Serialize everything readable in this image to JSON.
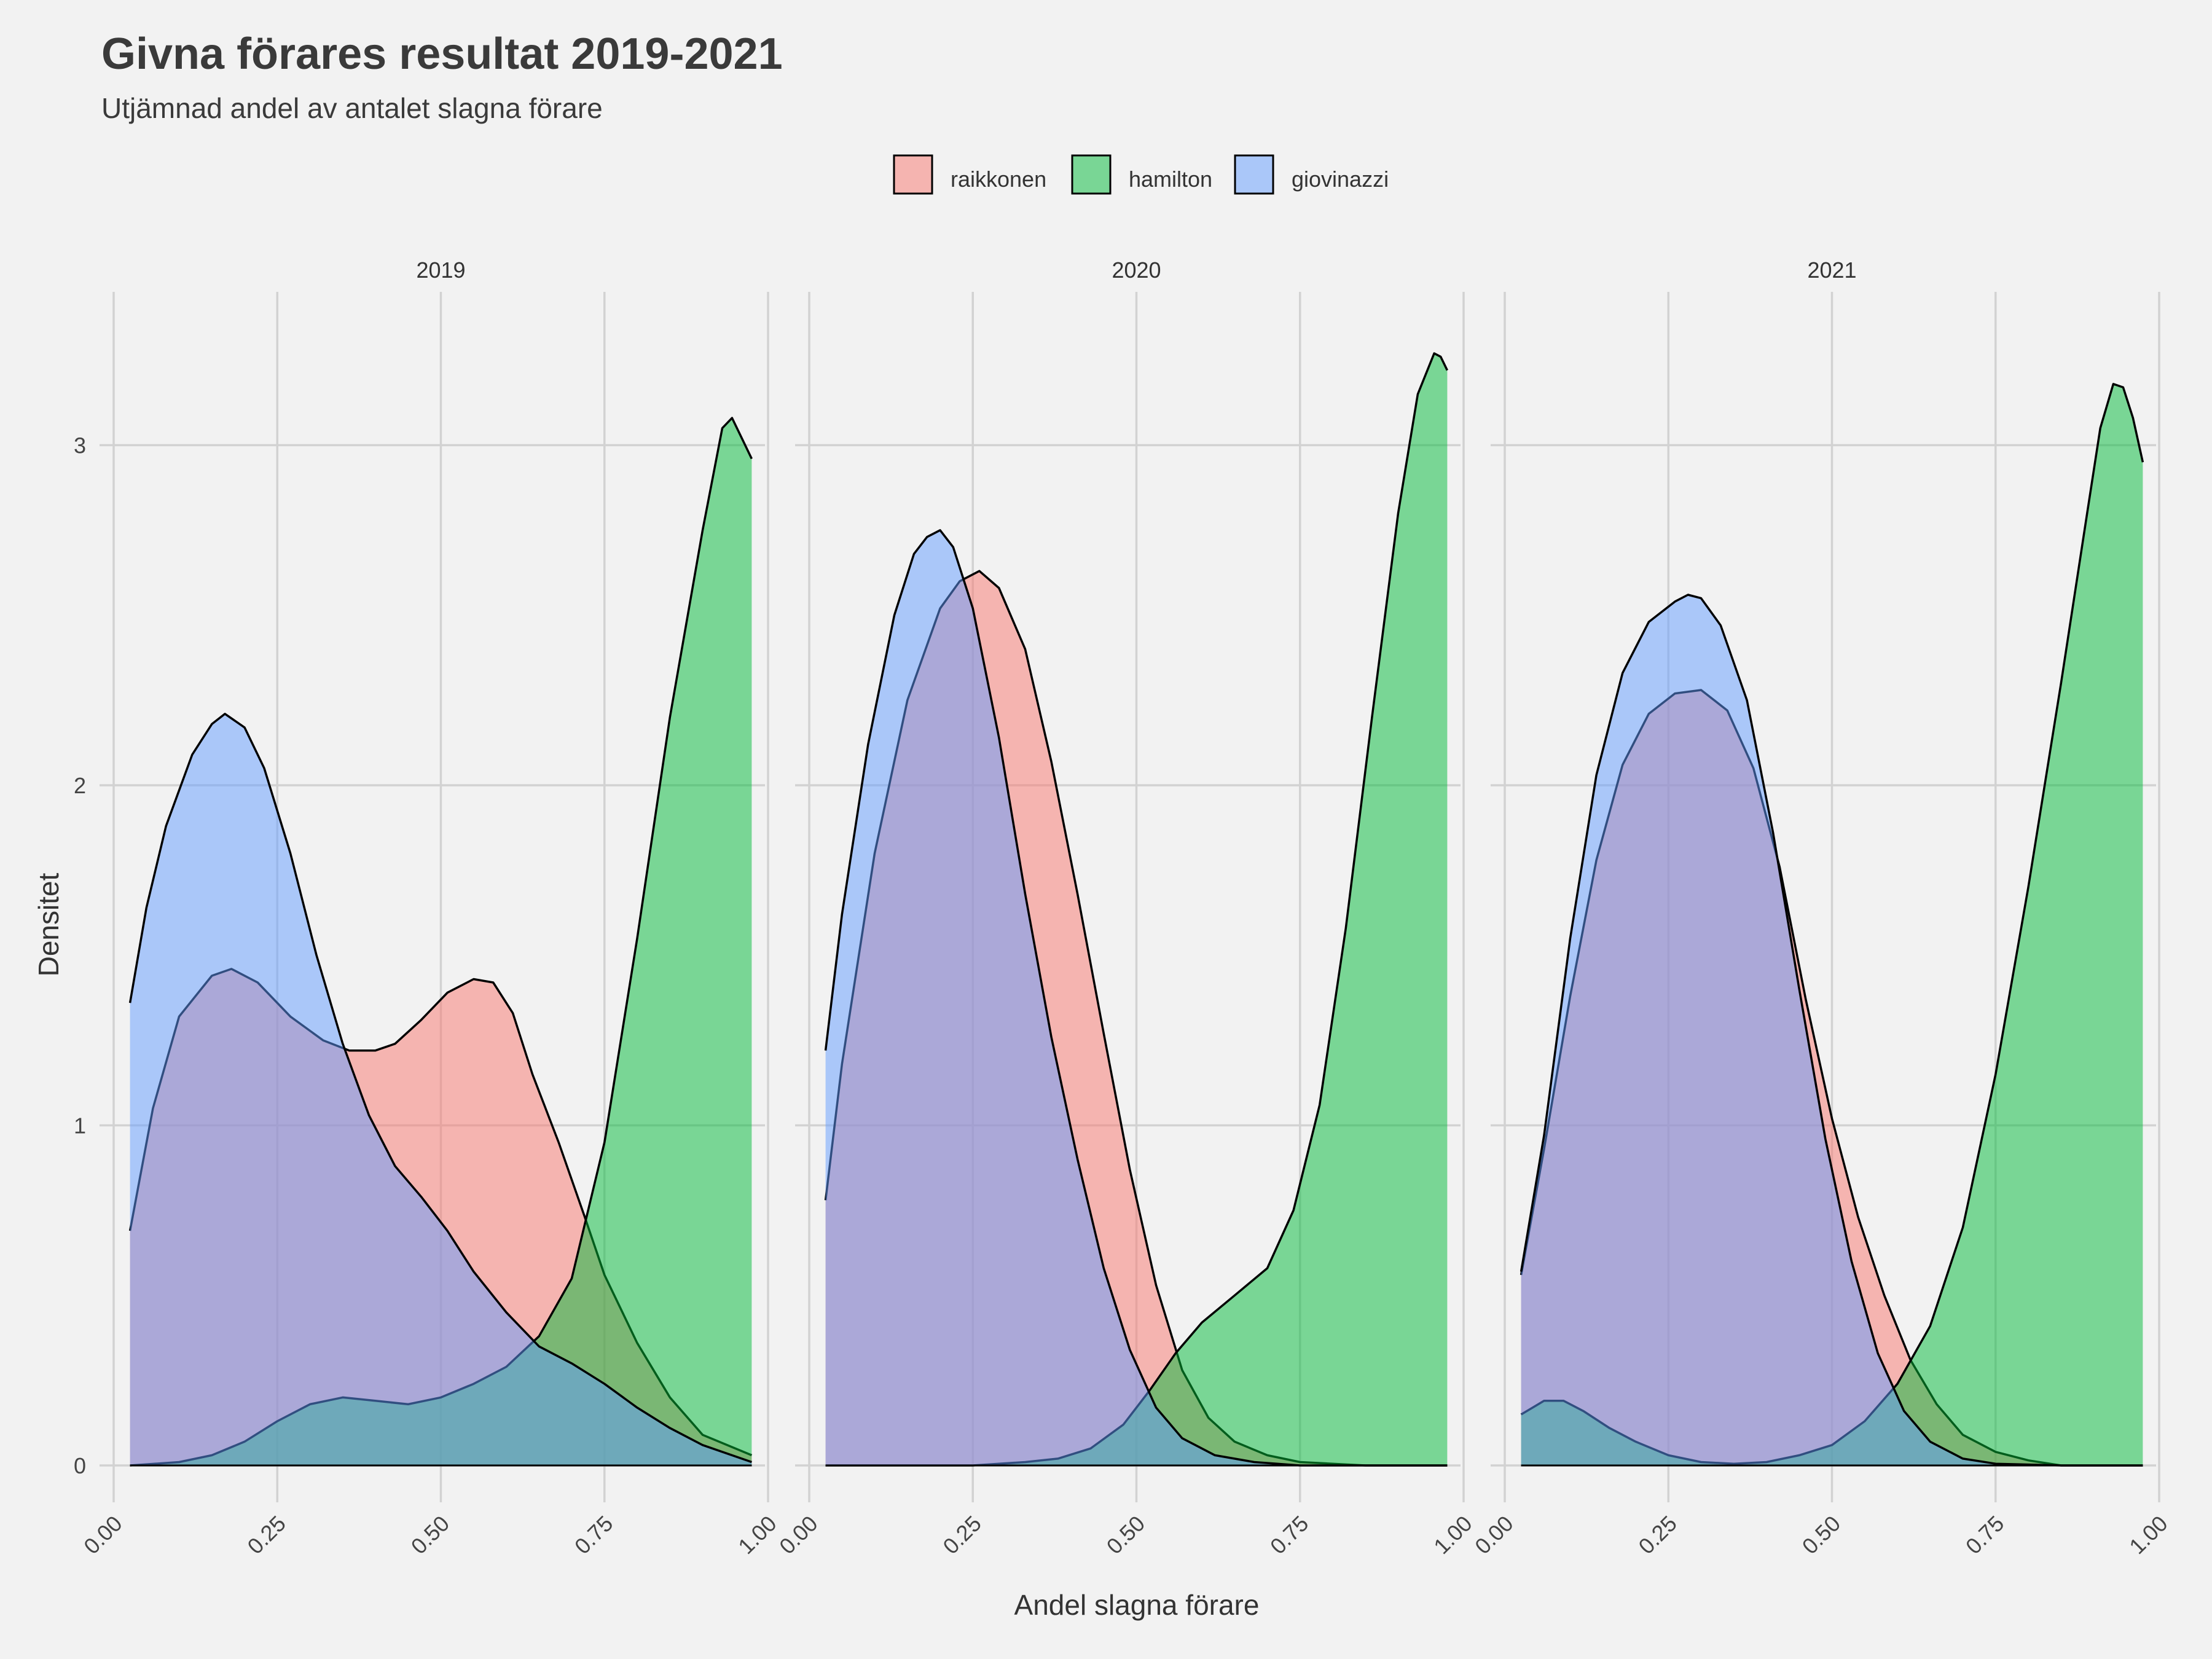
{
  "title": "Givna förares resultat 2019-2021",
  "subtitle": "Utjämnad andel av antalet slagna förare",
  "colors": {
    "raikkonen": "#f8766d",
    "hamilton": "#00ba38",
    "giovinazzi": "#619cff",
    "background": "#f2f2f2",
    "grid": "#d2d2d2"
  },
  "chart_data": {
    "type": "area",
    "subtype": "density",
    "xlabel": "Andel slagna förare",
    "ylabel": "Densitet",
    "xlim": [
      0,
      1
    ],
    "ylim": [
      0,
      3.3
    ],
    "xticks": [
      "0.00",
      "0.25",
      "0.50",
      "0.75",
      "1.00"
    ],
    "yticks": [
      "0",
      "1",
      "2",
      "3"
    ],
    "legend": {
      "position": "top",
      "entries": [
        "raikkonen",
        "hamilton",
        "giovinazzi"
      ]
    },
    "grid": true,
    "panels": [
      {
        "label": "2019",
        "series": [
          {
            "name": "raikkonen",
            "points": [
              [
                0.025,
                0.69
              ],
              [
                0.06,
                1.05
              ],
              [
                0.1,
                1.32
              ],
              [
                0.15,
                1.44
              ],
              [
                0.18,
                1.46
              ],
              [
                0.22,
                1.42
              ],
              [
                0.27,
                1.32
              ],
              [
                0.32,
                1.25
              ],
              [
                0.36,
                1.22
              ],
              [
                0.4,
                1.22
              ],
              [
                0.43,
                1.24
              ],
              [
                0.47,
                1.31
              ],
              [
                0.51,
                1.39
              ],
              [
                0.55,
                1.43
              ],
              [
                0.58,
                1.42
              ],
              [
                0.61,
                1.33
              ],
              [
                0.64,
                1.15
              ],
              [
                0.68,
                0.95
              ],
              [
                0.72,
                0.73
              ],
              [
                0.75,
                0.56
              ],
              [
                0.8,
                0.36
              ],
              [
                0.85,
                0.2
              ],
              [
                0.9,
                0.09
              ],
              [
                0.975,
                0.03
              ]
            ]
          },
          {
            "name": "hamilton",
            "points": [
              [
                0.025,
                0.0
              ],
              [
                0.1,
                0.01
              ],
              [
                0.15,
                0.03
              ],
              [
                0.2,
                0.07
              ],
              [
                0.25,
                0.13
              ],
              [
                0.3,
                0.18
              ],
              [
                0.35,
                0.2
              ],
              [
                0.4,
                0.19
              ],
              [
                0.45,
                0.18
              ],
              [
                0.5,
                0.2
              ],
              [
                0.55,
                0.24
              ],
              [
                0.6,
                0.29
              ],
              [
                0.65,
                0.38
              ],
              [
                0.7,
                0.55
              ],
              [
                0.75,
                0.95
              ],
              [
                0.8,
                1.55
              ],
              [
                0.85,
                2.2
              ],
              [
                0.9,
                2.75
              ],
              [
                0.93,
                3.05
              ],
              [
                0.945,
                3.08
              ],
              [
                0.96,
                3.02
              ],
              [
                0.975,
                2.96
              ]
            ]
          },
          {
            "name": "giovinazzi",
            "points": [
              [
                0.025,
                1.36
              ],
              [
                0.05,
                1.64
              ],
              [
                0.08,
                1.88
              ],
              [
                0.12,
                2.09
              ],
              [
                0.15,
                2.18
              ],
              [
                0.17,
                2.21
              ],
              [
                0.2,
                2.17
              ],
              [
                0.23,
                2.05
              ],
              [
                0.27,
                1.8
              ],
              [
                0.31,
                1.5
              ],
              [
                0.35,
                1.24
              ],
              [
                0.39,
                1.03
              ],
              [
                0.43,
                0.88
              ],
              [
                0.47,
                0.79
              ],
              [
                0.51,
                0.69
              ],
              [
                0.55,
                0.57
              ],
              [
                0.6,
                0.45
              ],
              [
                0.65,
                0.35
              ],
              [
                0.7,
                0.3
              ],
              [
                0.75,
                0.24
              ],
              [
                0.8,
                0.17
              ],
              [
                0.85,
                0.11
              ],
              [
                0.9,
                0.06
              ],
              [
                0.975,
                0.01
              ]
            ]
          }
        ]
      },
      {
        "label": "2020",
        "series": [
          {
            "name": "raikkonen",
            "points": [
              [
                0.025,
                0.78
              ],
              [
                0.05,
                1.18
              ],
              [
                0.1,
                1.8
              ],
              [
                0.15,
                2.25
              ],
              [
                0.2,
                2.52
              ],
              [
                0.23,
                2.6
              ],
              [
                0.26,
                2.63
              ],
              [
                0.29,
                2.58
              ],
              [
                0.33,
                2.4
              ],
              [
                0.37,
                2.07
              ],
              [
                0.41,
                1.68
              ],
              [
                0.45,
                1.27
              ],
              [
                0.49,
                0.87
              ],
              [
                0.53,
                0.53
              ],
              [
                0.57,
                0.28
              ],
              [
                0.61,
                0.14
              ],
              [
                0.65,
                0.07
              ],
              [
                0.7,
                0.03
              ],
              [
                0.75,
                0.01
              ],
              [
                0.85,
                0.0
              ],
              [
                0.975,
                0.0
              ]
            ]
          },
          {
            "name": "hamilton",
            "points": [
              [
                0.025,
                0.0
              ],
              [
                0.25,
                0.0
              ],
              [
                0.33,
                0.01
              ],
              [
                0.38,
                0.02
              ],
              [
                0.43,
                0.05
              ],
              [
                0.48,
                0.12
              ],
              [
                0.52,
                0.22
              ],
              [
                0.56,
                0.33
              ],
              [
                0.6,
                0.42
              ],
              [
                0.65,
                0.5
              ],
              [
                0.7,
                0.58
              ],
              [
                0.74,
                0.75
              ],
              [
                0.78,
                1.06
              ],
              [
                0.82,
                1.58
              ],
              [
                0.86,
                2.2
              ],
              [
                0.9,
                2.8
              ],
              [
                0.93,
                3.15
              ],
              [
                0.955,
                3.27
              ],
              [
                0.965,
                3.26
              ],
              [
                0.975,
                3.22
              ]
            ]
          },
          {
            "name": "giovinazzi",
            "points": [
              [
                0.025,
                1.22
              ],
              [
                0.05,
                1.62
              ],
              [
                0.09,
                2.12
              ],
              [
                0.13,
                2.5
              ],
              [
                0.16,
                2.68
              ],
              [
                0.18,
                2.73
              ],
              [
                0.2,
                2.75
              ],
              [
                0.22,
                2.7
              ],
              [
                0.25,
                2.52
              ],
              [
                0.29,
                2.14
              ],
              [
                0.33,
                1.68
              ],
              [
                0.37,
                1.26
              ],
              [
                0.41,
                0.9
              ],
              [
                0.45,
                0.58
              ],
              [
                0.49,
                0.34
              ],
              [
                0.53,
                0.17
              ],
              [
                0.57,
                0.08
              ],
              [
                0.62,
                0.03
              ],
              [
                0.68,
                0.01
              ],
              [
                0.75,
                0.0
              ],
              [
                0.975,
                0.0
              ]
            ]
          }
        ]
      },
      {
        "label": "2021",
        "series": [
          {
            "name": "raikkonen",
            "points": [
              [
                0.025,
                0.56
              ],
              [
                0.06,
                0.93
              ],
              [
                0.1,
                1.38
              ],
              [
                0.14,
                1.78
              ],
              [
                0.18,
                2.06
              ],
              [
                0.22,
                2.21
              ],
              [
                0.26,
                2.27
              ],
              [
                0.3,
                2.28
              ],
              [
                0.34,
                2.22
              ],
              [
                0.38,
                2.05
              ],
              [
                0.42,
                1.76
              ],
              [
                0.46,
                1.37
              ],
              [
                0.5,
                1.02
              ],
              [
                0.54,
                0.73
              ],
              [
                0.58,
                0.5
              ],
              [
                0.62,
                0.31
              ],
              [
                0.66,
                0.18
              ],
              [
                0.7,
                0.09
              ],
              [
                0.75,
                0.04
              ],
              [
                0.8,
                0.015
              ],
              [
                0.85,
                0.0
              ],
              [
                0.975,
                0.0
              ]
            ]
          },
          {
            "name": "hamilton",
            "points": [
              [
                0.025,
                0.15
              ],
              [
                0.06,
                0.19
              ],
              [
                0.09,
                0.19
              ],
              [
                0.12,
                0.16
              ],
              [
                0.16,
                0.11
              ],
              [
                0.2,
                0.07
              ],
              [
                0.25,
                0.03
              ],
              [
                0.3,
                0.01
              ],
              [
                0.35,
                0.005
              ],
              [
                0.4,
                0.01
              ],
              [
                0.45,
                0.03
              ],
              [
                0.5,
                0.06
              ],
              [
                0.55,
                0.13
              ],
              [
                0.6,
                0.24
              ],
              [
                0.65,
                0.41
              ],
              [
                0.7,
                0.7
              ],
              [
                0.75,
                1.15
              ],
              [
                0.8,
                1.7
              ],
              [
                0.85,
                2.3
              ],
              [
                0.89,
                2.8
              ],
              [
                0.91,
                3.05
              ],
              [
                0.93,
                3.18
              ],
              [
                0.945,
                3.17
              ],
              [
                0.96,
                3.08
              ],
              [
                0.975,
                2.95
              ]
            ]
          },
          {
            "name": "giovinazzi",
            "points": [
              [
                0.025,
                0.57
              ],
              [
                0.06,
                0.97
              ],
              [
                0.1,
                1.55
              ],
              [
                0.14,
                2.03
              ],
              [
                0.18,
                2.33
              ],
              [
                0.22,
                2.48
              ],
              [
                0.26,
                2.54
              ],
              [
                0.28,
                2.56
              ],
              [
                0.3,
                2.55
              ],
              [
                0.33,
                2.47
              ],
              [
                0.37,
                2.25
              ],
              [
                0.41,
                1.86
              ],
              [
                0.45,
                1.4
              ],
              [
                0.49,
                0.96
              ],
              [
                0.53,
                0.6
              ],
              [
                0.57,
                0.33
              ],
              [
                0.61,
                0.16
              ],
              [
                0.65,
                0.07
              ],
              [
                0.7,
                0.02
              ],
              [
                0.75,
                0.005
              ],
              [
                0.85,
                0.0
              ],
              [
                0.975,
                0.0
              ]
            ]
          }
        ]
      }
    ]
  }
}
